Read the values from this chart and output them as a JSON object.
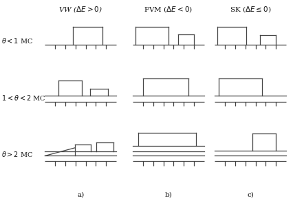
{
  "bg_color": "#ffffff",
  "line_color": "#444444",
  "text_color": "#111111",
  "col_labels": [
    "VW ($\\Delta E > 0$)",
    "FVM ($\\Delta E < 0$)",
    "SK ($\\Delta E \\leq 0$)"
  ],
  "row_labels": [
    "$\\theta < 1$ MC",
    "$1 < \\theta < 2$ MC",
    "$\\theta > 2$ MC"
  ],
  "sub_labels": [
    "a)",
    "b)",
    "c)"
  ],
  "lw": 0.9
}
